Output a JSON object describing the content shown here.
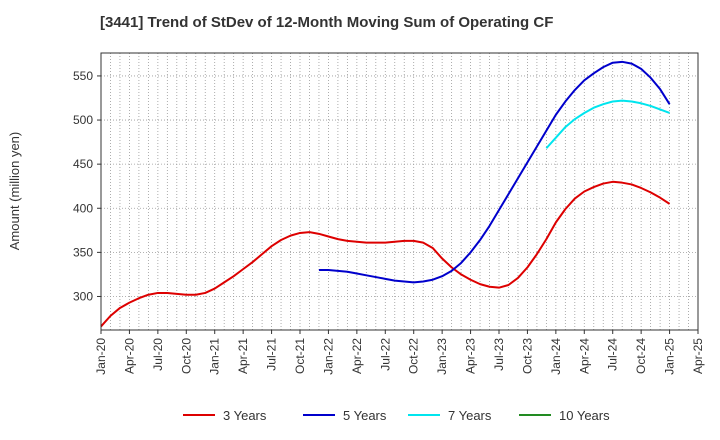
{
  "chart_data": {
    "type": "line",
    "title": "[3441]  Trend of StDev of 12-Month Moving Sum of Operating CF",
    "ylabel": "Amount (million yen)",
    "xlabel": "",
    "ylim": [
      262,
      576
    ],
    "yticks": [
      300,
      350,
      400,
      450,
      500,
      550
    ],
    "x_range": [
      "2020-01",
      "2025-04"
    ],
    "x_tick_labels": [
      "Jan-20",
      "Apr-20",
      "Jul-20",
      "Oct-20",
      "Jan-21",
      "Apr-21",
      "Jul-21",
      "Oct-21",
      "Jan-22",
      "Apr-22",
      "Jul-22",
      "Oct-22",
      "Jan-23",
      "Apr-23",
      "Jul-23",
      "Oct-23",
      "Jan-24",
      "Apr-24",
      "Jul-24",
      "Oct-24",
      "Jan-25",
      "Apr-25"
    ],
    "grid": true,
    "legend_position": "bottom",
    "series": [
      {
        "name": "3 Years",
        "color": "#dd0000",
        "points": [
          [
            "2020-01",
            266
          ],
          [
            "2020-02",
            278
          ],
          [
            "2020-03",
            287
          ],
          [
            "2020-04",
            293
          ],
          [
            "2020-05",
            298
          ],
          [
            "2020-06",
            302
          ],
          [
            "2020-07",
            304
          ],
          [
            "2020-08",
            304
          ],
          [
            "2020-09",
            303
          ],
          [
            "2020-10",
            302
          ],
          [
            "2020-11",
            302
          ],
          [
            "2020-12",
            304
          ],
          [
            "2021-01",
            309
          ],
          [
            "2021-02",
            316
          ],
          [
            "2021-03",
            323
          ],
          [
            "2021-04",
            331
          ],
          [
            "2021-05",
            339
          ],
          [
            "2021-06",
            348
          ],
          [
            "2021-07",
            357
          ],
          [
            "2021-08",
            364
          ],
          [
            "2021-09",
            369
          ],
          [
            "2021-10",
            372
          ],
          [
            "2021-11",
            373
          ],
          [
            "2021-12",
            371
          ],
          [
            "2022-01",
            368
          ],
          [
            "2022-02",
            365
          ],
          [
            "2022-03",
            363
          ],
          [
            "2022-04",
            362
          ],
          [
            "2022-05",
            361
          ],
          [
            "2022-06",
            361
          ],
          [
            "2022-07",
            361
          ],
          [
            "2022-08",
            362
          ],
          [
            "2022-09",
            363
          ],
          [
            "2022-10",
            363
          ],
          [
            "2022-11",
            361
          ],
          [
            "2022-12",
            355
          ],
          [
            "2023-01",
            343
          ],
          [
            "2023-02",
            333
          ],
          [
            "2023-03",
            325
          ],
          [
            "2023-04",
            319
          ],
          [
            "2023-05",
            314
          ],
          [
            "2023-06",
            311
          ],
          [
            "2023-07",
            310
          ],
          [
            "2023-08",
            313
          ],
          [
            "2023-09",
            321
          ],
          [
            "2023-10",
            333
          ],
          [
            "2023-11",
            348
          ],
          [
            "2023-12",
            365
          ],
          [
            "2024-01",
            384
          ],
          [
            "2024-02",
            399
          ],
          [
            "2024-03",
            411
          ],
          [
            "2024-04",
            419
          ],
          [
            "2024-05",
            424
          ],
          [
            "2024-06",
            428
          ],
          [
            "2024-07",
            430
          ],
          [
            "2024-08",
            429
          ],
          [
            "2024-09",
            427
          ],
          [
            "2024-10",
            423
          ],
          [
            "2024-11",
            418
          ],
          [
            "2024-12",
            412
          ],
          [
            "2025-01",
            405
          ]
        ]
      },
      {
        "name": "5 Years",
        "color": "#0000cc",
        "points": [
          [
            "2021-12",
            330
          ],
          [
            "2022-01",
            330
          ],
          [
            "2022-02",
            329
          ],
          [
            "2022-03",
            328
          ],
          [
            "2022-04",
            326
          ],
          [
            "2022-05",
            324
          ],
          [
            "2022-06",
            322
          ],
          [
            "2022-07",
            320
          ],
          [
            "2022-08",
            318
          ],
          [
            "2022-09",
            317
          ],
          [
            "2022-10",
            316
          ],
          [
            "2022-11",
            317
          ],
          [
            "2022-12",
            319
          ],
          [
            "2023-01",
            323
          ],
          [
            "2023-02",
            329
          ],
          [
            "2023-03",
            338
          ],
          [
            "2023-04",
            350
          ],
          [
            "2023-05",
            364
          ],
          [
            "2023-06",
            380
          ],
          [
            "2023-07",
            398
          ],
          [
            "2023-08",
            416
          ],
          [
            "2023-09",
            434
          ],
          [
            "2023-10",
            452
          ],
          [
            "2023-11",
            470
          ],
          [
            "2023-12",
            488
          ],
          [
            "2024-01",
            506
          ],
          [
            "2024-02",
            521
          ],
          [
            "2024-03",
            534
          ],
          [
            "2024-04",
            545
          ],
          [
            "2024-05",
            553
          ],
          [
            "2024-06",
            560
          ],
          [
            "2024-07",
            565
          ],
          [
            "2024-08",
            566
          ],
          [
            "2024-09",
            564
          ],
          [
            "2024-10",
            558
          ],
          [
            "2024-11",
            548
          ],
          [
            "2024-12",
            535
          ],
          [
            "2025-01",
            518
          ]
        ]
      },
      {
        "name": "7 Years",
        "color": "#00e5ee",
        "points": [
          [
            "2023-12",
            468
          ],
          [
            "2024-01",
            480
          ],
          [
            "2024-02",
            492
          ],
          [
            "2024-03",
            501
          ],
          [
            "2024-04",
            508
          ],
          [
            "2024-05",
            514
          ],
          [
            "2024-06",
            518
          ],
          [
            "2024-07",
            521
          ],
          [
            "2024-08",
            522
          ],
          [
            "2024-09",
            521
          ],
          [
            "2024-10",
            519
          ],
          [
            "2024-11",
            516
          ],
          [
            "2024-12",
            512
          ],
          [
            "2025-01",
            508
          ]
        ]
      },
      {
        "name": "10 Years",
        "color": "#228b22",
        "points": []
      }
    ]
  }
}
